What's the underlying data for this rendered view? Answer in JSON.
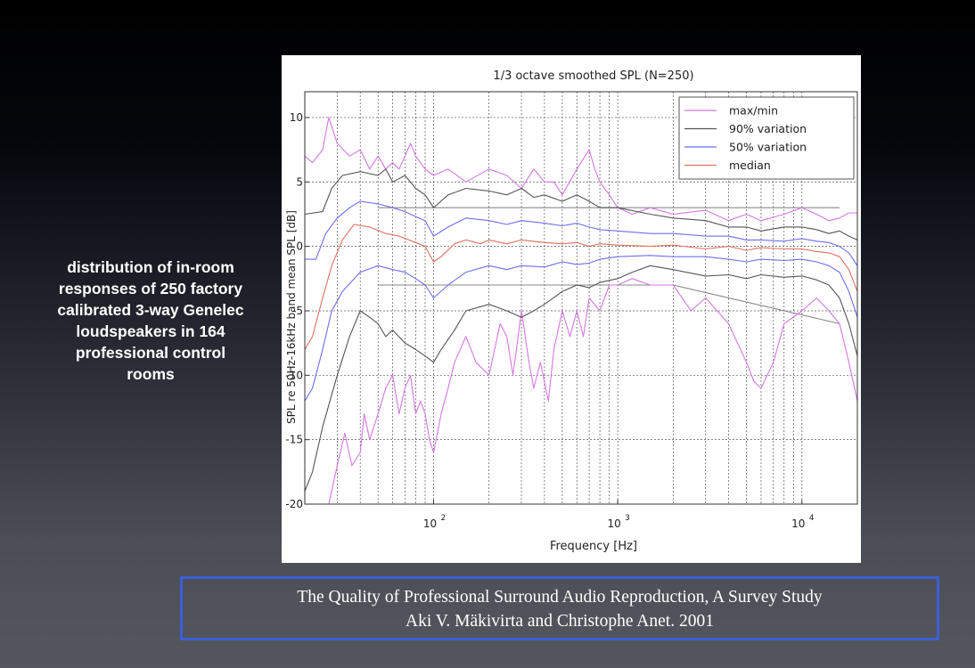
{
  "side_text": "distribution of in-room\nresponses of 250 factory\ncalibrated 3-way Genelec\nloudspeakers in 164\nprofessional control\nrooms",
  "citation": {
    "line1": "The Quality of Professional Surround Audio Reproduction, A Survey Study",
    "line2": "Aki V. Mäkivirta and Christophe Anet. 2001"
  },
  "chart_data": {
    "type": "line",
    "title": "1/3 octave smoothed SPL (N=250)",
    "xlabel": "Frequency [Hz]",
    "ylabel": "SPL re 50Hz-16kHz band mean SPL [dB]",
    "x_scale": "log",
    "xlim": [
      20,
      20000
    ],
    "ylim": [
      -20,
      12
    ],
    "x_ticks": [
      {
        "value": 100,
        "mantissa": "10",
        "exponent": "2"
      },
      {
        "value": 1000,
        "mantissa": "10",
        "exponent": "3"
      },
      {
        "value": 10000,
        "mantissa": "10",
        "exponent": "4"
      }
    ],
    "y_ticks": [
      10,
      5,
      0,
      -5,
      -10,
      -15,
      -20
    ],
    "grid": true,
    "legend_position": "top-right",
    "colors": {
      "max_min": "#d477e0",
      "variation_90": "#555555",
      "variation_50": "#6e6ef0",
      "median": "#e0705e",
      "guide": "#888888"
    },
    "legend": [
      {
        "label": "max/min",
        "color": "#d477e0"
      },
      {
        "label": "90% variation",
        "color": "#555555"
      },
      {
        "label": "50% variation",
        "color": "#6e6ef0"
      },
      {
        "label": "median",
        "color": "#e0705e"
      }
    ],
    "guides": [
      {
        "points": [
          [
            50,
            3
          ],
          [
            16000,
            3
          ]
        ]
      },
      {
        "points": [
          [
            50,
            -3
          ],
          [
            2000,
            -3
          ],
          [
            16000,
            -6
          ]
        ]
      }
    ],
    "series": [
      {
        "name": "max/min",
        "color": "#d477e0",
        "points": [
          [
            20,
            7
          ],
          [
            22,
            6.5
          ],
          [
            25,
            7.5
          ],
          [
            27,
            10
          ],
          [
            30,
            8
          ],
          [
            35,
            7
          ],
          [
            40,
            7.5
          ],
          [
            45,
            6
          ],
          [
            50,
            7
          ],
          [
            55,
            6
          ],
          [
            60,
            6.5
          ],
          [
            65,
            6
          ],
          [
            70,
            7
          ],
          [
            75,
            8
          ],
          [
            80,
            7
          ],
          [
            90,
            6
          ],
          [
            100,
            5.5
          ],
          [
            120,
            6
          ],
          [
            150,
            5
          ],
          [
            200,
            6
          ],
          [
            250,
            5.5
          ],
          [
            300,
            4.5
          ],
          [
            350,
            6
          ],
          [
            400,
            5
          ],
          [
            450,
            5
          ],
          [
            500,
            4
          ],
          [
            600,
            6
          ],
          [
            700,
            7.5
          ],
          [
            750,
            6
          ],
          [
            800,
            5
          ],
          [
            900,
            4
          ],
          [
            1000,
            3
          ],
          [
            1200,
            2.5
          ],
          [
            1500,
            3
          ],
          [
            2000,
            2.5
          ],
          [
            3000,
            2.8
          ],
          [
            4000,
            2
          ],
          [
            5000,
            2.5
          ],
          [
            6000,
            2
          ],
          [
            8000,
            2.5
          ],
          [
            10000,
            3
          ],
          [
            12000,
            2.5
          ],
          [
            14000,
            2
          ],
          [
            16000,
            2.2
          ],
          [
            18000,
            2.6
          ],
          [
            20000,
            2.6
          ]
        ]
      },
      {
        "name": "max/min",
        "color": "#d477e0",
        "points": [
          [
            27,
            -20
          ],
          [
            30,
            -17
          ],
          [
            33,
            -14.5
          ],
          [
            36,
            -17
          ],
          [
            40,
            -16
          ],
          [
            42,
            -13
          ],
          [
            45,
            -15
          ],
          [
            50,
            -13
          ],
          [
            55,
            -11
          ],
          [
            60,
            -10
          ],
          [
            65,
            -13
          ],
          [
            70,
            -11
          ],
          [
            75,
            -10
          ],
          [
            80,
            -13
          ],
          [
            85,
            -12
          ],
          [
            90,
            -13
          ],
          [
            95,
            -15
          ],
          [
            100,
            -16
          ],
          [
            110,
            -13
          ],
          [
            120,
            -11
          ],
          [
            130,
            -9
          ],
          [
            150,
            -7
          ],
          [
            170,
            -9
          ],
          [
            200,
            -10
          ],
          [
            230,
            -6
          ],
          [
            250,
            -7
          ],
          [
            270,
            -10
          ],
          [
            300,
            -5
          ],
          [
            330,
            -9
          ],
          [
            350,
            -11
          ],
          [
            380,
            -9
          ],
          [
            420,
            -12
          ],
          [
            450,
            -8
          ],
          [
            500,
            -5
          ],
          [
            550,
            -7
          ],
          [
            600,
            -5
          ],
          [
            650,
            -7
          ],
          [
            700,
            -4
          ],
          [
            800,
            -5
          ],
          [
            900,
            -3
          ],
          [
            1000,
            -3
          ],
          [
            1200,
            -2.5
          ],
          [
            1500,
            -3
          ],
          [
            2000,
            -3
          ],
          [
            2500,
            -5
          ],
          [
            3000,
            -4
          ],
          [
            4000,
            -6
          ],
          [
            5000,
            -9
          ],
          [
            5500,
            -10.5
          ],
          [
            6000,
            -11
          ],
          [
            7000,
            -9
          ],
          [
            8000,
            -6
          ],
          [
            10000,
            -5
          ],
          [
            12000,
            -4
          ],
          [
            14000,
            -5
          ],
          [
            16000,
            -6
          ],
          [
            18000,
            -9
          ],
          [
            20000,
            -12
          ]
        ]
      },
      {
        "name": "90% variation",
        "color": "#555555",
        "points": [
          [
            20,
            2.5
          ],
          [
            25,
            2.7
          ],
          [
            28,
            4.5
          ],
          [
            32,
            5.5
          ],
          [
            40,
            5.8
          ],
          [
            50,
            5.5
          ],
          [
            55,
            6
          ],
          [
            60,
            5
          ],
          [
            70,
            5.5
          ],
          [
            80,
            4.5
          ],
          [
            90,
            4
          ],
          [
            100,
            3
          ],
          [
            120,
            4
          ],
          [
            150,
            4.5
          ],
          [
            200,
            4.3
          ],
          [
            250,
            4
          ],
          [
            300,
            4.5
          ],
          [
            350,
            3.8
          ],
          [
            400,
            4
          ],
          [
            500,
            3.5
          ],
          [
            600,
            4
          ],
          [
            700,
            3.5
          ],
          [
            800,
            3
          ],
          [
            1000,
            3
          ],
          [
            1500,
            2.5
          ],
          [
            2000,
            2.2
          ],
          [
            3000,
            2
          ],
          [
            4000,
            1.5
          ],
          [
            5000,
            1.5
          ],
          [
            6000,
            1.2
          ],
          [
            8000,
            1.5
          ],
          [
            10000,
            1.5
          ],
          [
            12000,
            1.3
          ],
          [
            14000,
            1
          ],
          [
            16000,
            1.2
          ],
          [
            18000,
            0.8
          ],
          [
            20000,
            0.5
          ]
        ]
      },
      {
        "name": "90% variation",
        "color": "#555555",
        "points": [
          [
            20,
            -19
          ],
          [
            22,
            -17.5
          ],
          [
            25,
            -14
          ],
          [
            30,
            -10
          ],
          [
            35,
            -7
          ],
          [
            40,
            -5
          ],
          [
            45,
            -5.5
          ],
          [
            50,
            -6
          ],
          [
            55,
            -7
          ],
          [
            60,
            -6.5
          ],
          [
            70,
            -7.5
          ],
          [
            80,
            -8
          ],
          [
            90,
            -8.5
          ],
          [
            100,
            -9
          ],
          [
            110,
            -8
          ],
          [
            130,
            -6.5
          ],
          [
            150,
            -5
          ],
          [
            200,
            -4.5
          ],
          [
            250,
            -5
          ],
          [
            300,
            -5.5
          ],
          [
            350,
            -5
          ],
          [
            400,
            -4.5
          ],
          [
            500,
            -3.5
          ],
          [
            600,
            -3
          ],
          [
            700,
            -3.2
          ],
          [
            800,
            -2.8
          ],
          [
            1000,
            -2.5
          ],
          [
            1200,
            -2
          ],
          [
            1500,
            -1.5
          ],
          [
            2000,
            -1.8
          ],
          [
            3000,
            -2.3
          ],
          [
            4000,
            -2.2
          ],
          [
            5000,
            -2.5
          ],
          [
            6000,
            -2.2
          ],
          [
            8000,
            -2.4
          ],
          [
            10000,
            -2.3
          ],
          [
            12000,
            -2.6
          ],
          [
            14000,
            -3
          ],
          [
            16000,
            -4
          ],
          [
            18000,
            -6
          ],
          [
            20000,
            -8.5
          ]
        ]
      },
      {
        "name": "50% variation",
        "color": "#6e6ef0",
        "points": [
          [
            20,
            -1
          ],
          [
            23,
            -1
          ],
          [
            26,
            1
          ],
          [
            30,
            2.2
          ],
          [
            35,
            3
          ],
          [
            40,
            3.5
          ],
          [
            50,
            3.3
          ],
          [
            60,
            3
          ],
          [
            70,
            2.7
          ],
          [
            80,
            2.3
          ],
          [
            90,
            2
          ],
          [
            100,
            0.8
          ],
          [
            120,
            1.5
          ],
          [
            150,
            2.2
          ],
          [
            200,
            2
          ],
          [
            250,
            1.7
          ],
          [
            300,
            2
          ],
          [
            400,
            1.8
          ],
          [
            500,
            1.6
          ],
          [
            600,
            1.8
          ],
          [
            700,
            1.5
          ],
          [
            800,
            1.3
          ],
          [
            1000,
            1.2
          ],
          [
            1500,
            1
          ],
          [
            2000,
            1
          ],
          [
            3000,
            0.8
          ],
          [
            4000,
            0.8
          ],
          [
            5000,
            0.5
          ],
          [
            6000,
            0.5
          ],
          [
            8000,
            0.4
          ],
          [
            10000,
            0.6
          ],
          [
            12000,
            0.4
          ],
          [
            14000,
            0.3
          ],
          [
            16000,
            0
          ],
          [
            18000,
            -0.5
          ],
          [
            20000,
            -1.5
          ]
        ]
      },
      {
        "name": "50% variation",
        "color": "#6e6ef0",
        "points": [
          [
            20,
            -12
          ],
          [
            22,
            -11
          ],
          [
            25,
            -8
          ],
          [
            28,
            -5
          ],
          [
            32,
            -3.5
          ],
          [
            40,
            -2
          ],
          [
            50,
            -1.5
          ],
          [
            60,
            -1.8
          ],
          [
            70,
            -2
          ],
          [
            80,
            -2.5
          ],
          [
            90,
            -3
          ],
          [
            100,
            -4
          ],
          [
            120,
            -3
          ],
          [
            150,
            -2
          ],
          [
            200,
            -1.5
          ],
          [
            250,
            -1.8
          ],
          [
            300,
            -1.5
          ],
          [
            400,
            -1.6
          ],
          [
            500,
            -1.2
          ],
          [
            600,
            -1.4
          ],
          [
            700,
            -1.3
          ],
          [
            800,
            -1
          ],
          [
            1000,
            -0.8
          ],
          [
            1500,
            -0.7
          ],
          [
            2000,
            -0.8
          ],
          [
            3000,
            -0.8
          ],
          [
            4000,
            -1
          ],
          [
            5000,
            -1.2
          ],
          [
            6000,
            -1
          ],
          [
            8000,
            -1.1
          ],
          [
            10000,
            -1
          ],
          [
            12000,
            -1.2
          ],
          [
            14000,
            -1.5
          ],
          [
            16000,
            -2
          ],
          [
            18000,
            -3.5
          ],
          [
            20000,
            -5.5
          ]
        ]
      },
      {
        "name": "median",
        "color": "#e0705e",
        "points": [
          [
            20,
            -8
          ],
          [
            22,
            -7
          ],
          [
            25,
            -4
          ],
          [
            28,
            -1.5
          ],
          [
            32,
            0.5
          ],
          [
            37,
            1.7
          ],
          [
            45,
            1.5
          ],
          [
            55,
            1
          ],
          [
            65,
            0.8
          ],
          [
            80,
            0.3
          ],
          [
            90,
            0
          ],
          [
            100,
            -1.2
          ],
          [
            110,
            -0.8
          ],
          [
            130,
            0.2
          ],
          [
            150,
            0.5
          ],
          [
            180,
            0.2
          ],
          [
            200,
            0.5
          ],
          [
            250,
            0.2
          ],
          [
            300,
            0.5
          ],
          [
            400,
            0.3
          ],
          [
            500,
            0.2
          ],
          [
            600,
            0.3
          ],
          [
            700,
            0
          ],
          [
            800,
            0.2
          ],
          [
            1000,
            0.1
          ],
          [
            1500,
            0
          ],
          [
            2000,
            0.1
          ],
          [
            3000,
            -0.2
          ],
          [
            4000,
            0
          ],
          [
            5000,
            -0.3
          ],
          [
            6000,
            -0.1
          ],
          [
            8000,
            -0.2
          ],
          [
            10000,
            -0.2
          ],
          [
            12000,
            -0.4
          ],
          [
            14000,
            -0.5
          ],
          [
            16000,
            -0.8
          ],
          [
            18000,
            -1.8
          ],
          [
            20000,
            -3.5
          ]
        ]
      }
    ]
  }
}
